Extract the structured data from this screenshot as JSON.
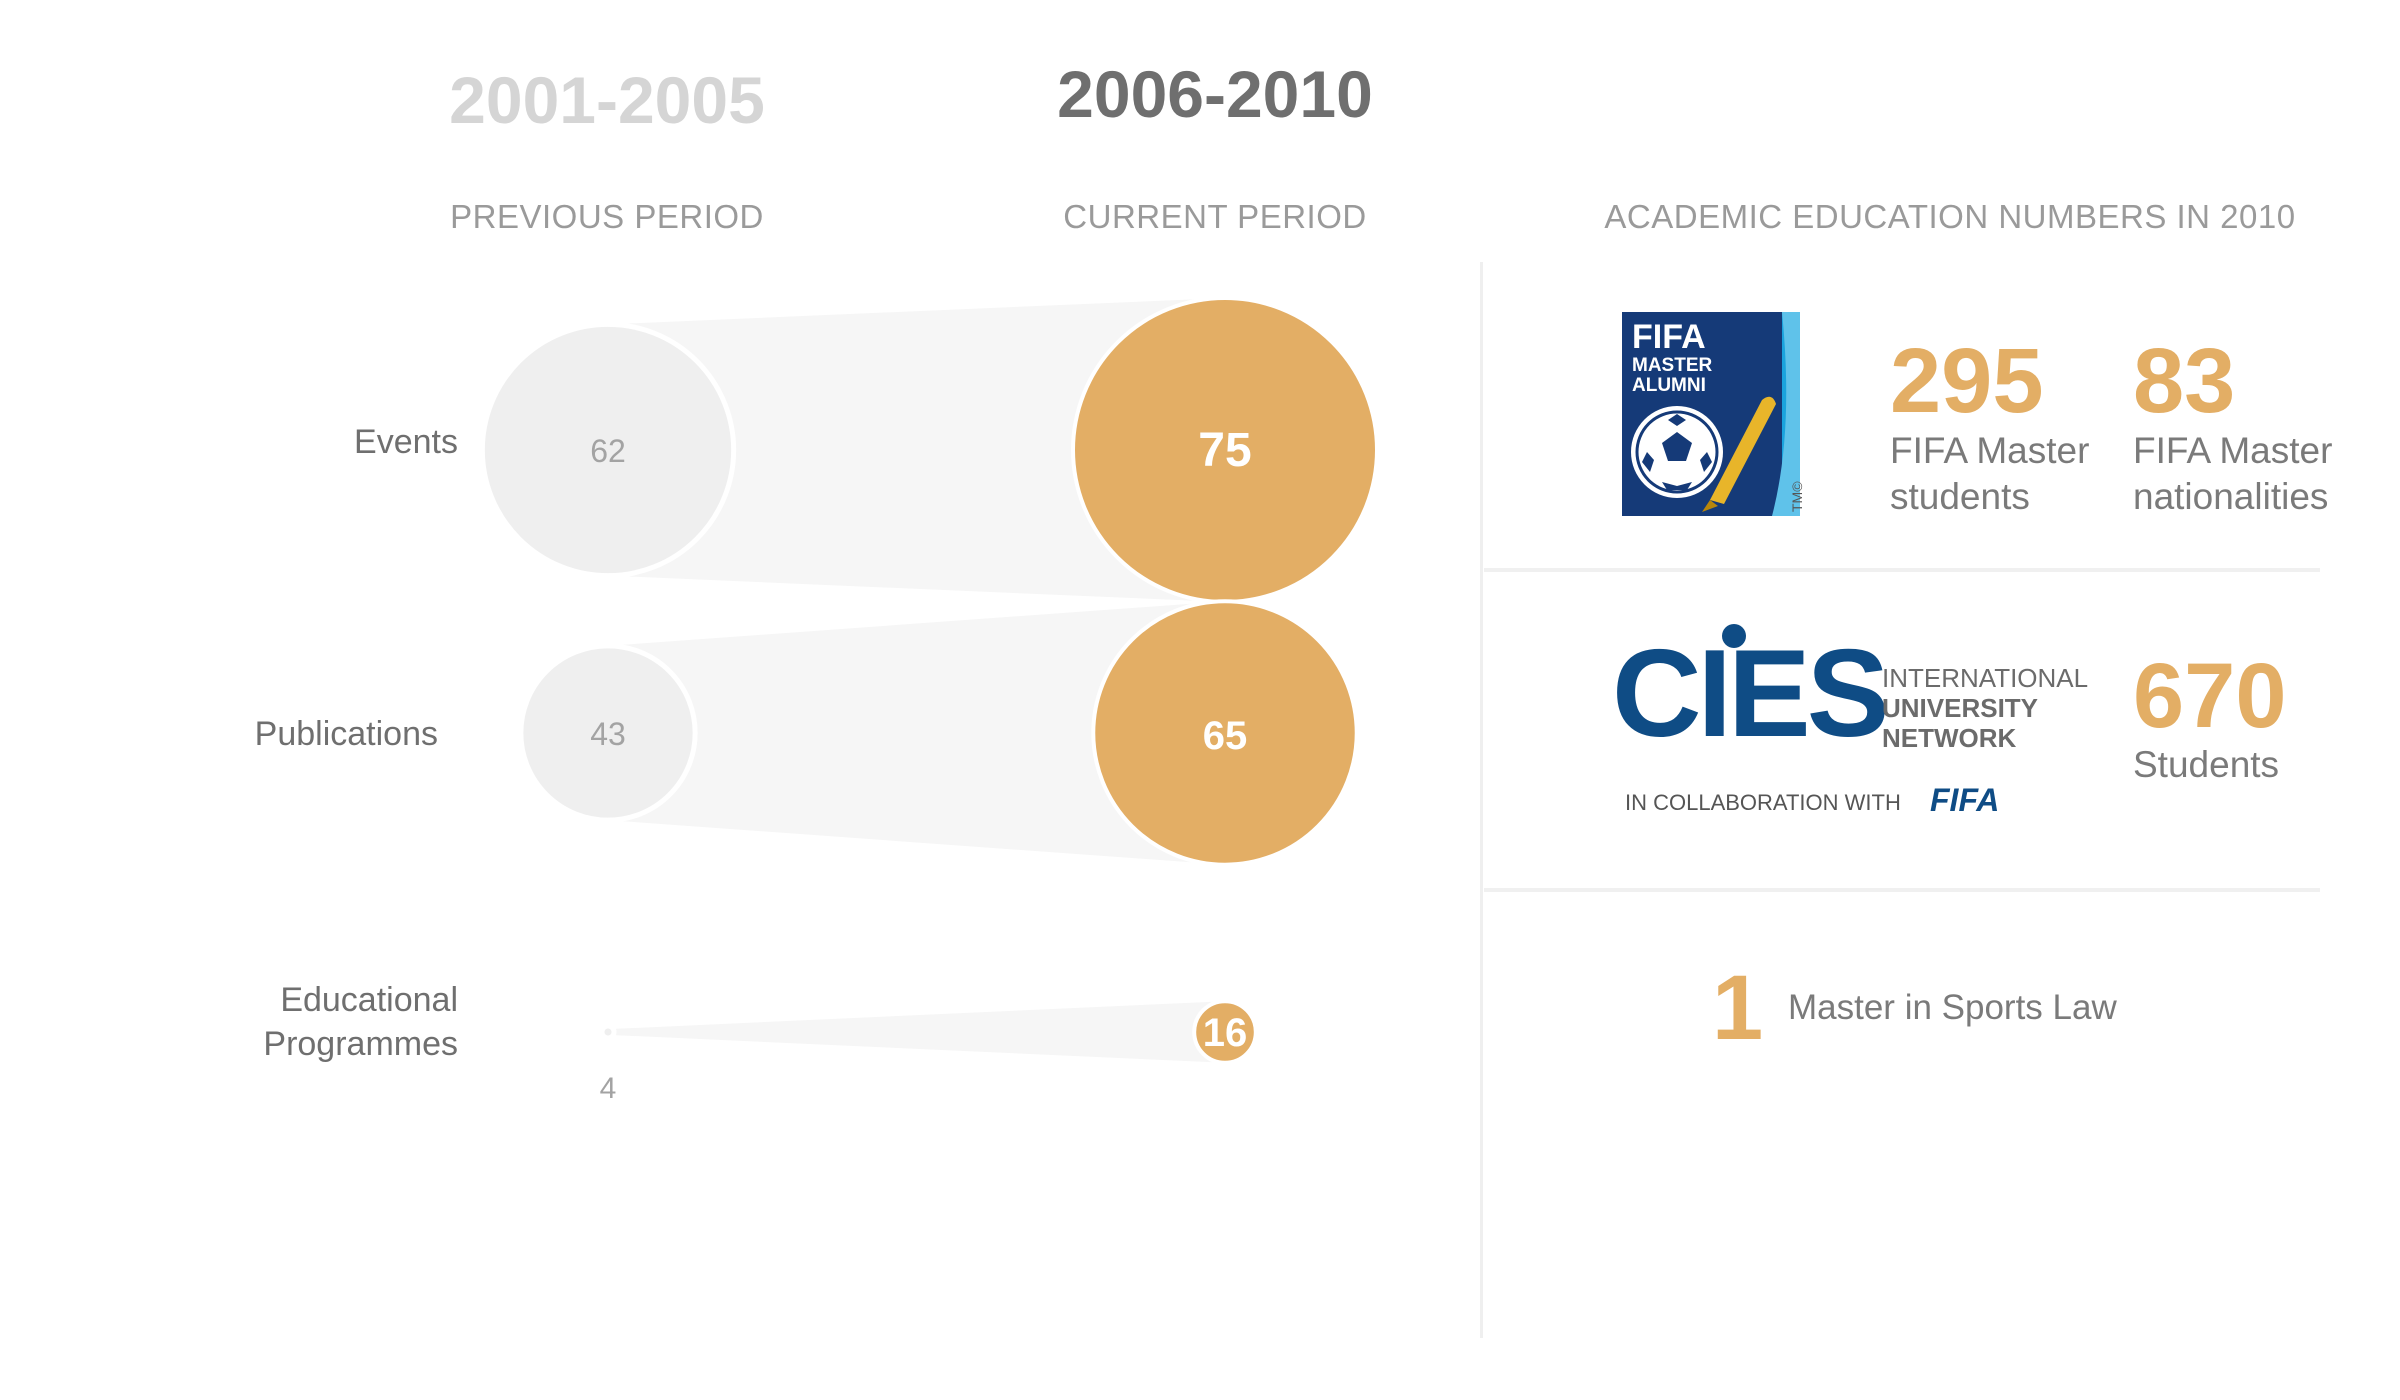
{
  "periods": {
    "previous": {
      "range": "2001-2005",
      "label": "PREVIOUS PERIOD"
    },
    "current": {
      "range": "2006-2010",
      "label": "CURRENT PERIOD"
    }
  },
  "right_header": "ACADEMIC EDUCATION NUMBERS IN 2010",
  "chart_data": {
    "type": "bubble-comparison",
    "categories": [
      "Events",
      "Publications",
      "Educational Programmes"
    ],
    "series": [
      {
        "name": "2001-2005",
        "values": [
          62,
          43,
          4
        ]
      },
      {
        "name": "2006-2010",
        "values": [
          75,
          65,
          16
        ]
      }
    ],
    "colors": {
      "previous": "#efefef",
      "current": "#e3ae65",
      "connector": "#f6f6f6"
    }
  },
  "row_labels": {
    "events": "Events",
    "publications": "Publications",
    "programmes_line1": "Educational",
    "programmes_line2": "Programmes"
  },
  "stats": {
    "fifa_master_students": {
      "value": "295",
      "line1": "FIFA Master",
      "line2": "students"
    },
    "fifa_master_nationalities": {
      "value": "83",
      "line1": "FIFA Master",
      "line2": "nationalities"
    },
    "cies_students": {
      "value": "670",
      "line1": "Students"
    },
    "sports_law": {
      "value": "1",
      "text": "Master in Sports Law"
    }
  },
  "logos": {
    "fifa_master_alumni": {
      "line1": "FIFA",
      "line2": "MASTER",
      "line3": "ALUMNI",
      "tm": "TM©"
    },
    "cies": {
      "wordmark": "CIES",
      "line1": "INTERNATIONAL",
      "line2": "UNIVERSITY",
      "line3": "NETWORK",
      "collab": "IN COLLABORATION WITH",
      "fifa": "FIFA"
    }
  },
  "accent": "#e3ae65",
  "brand_blue": "#0f4c85"
}
